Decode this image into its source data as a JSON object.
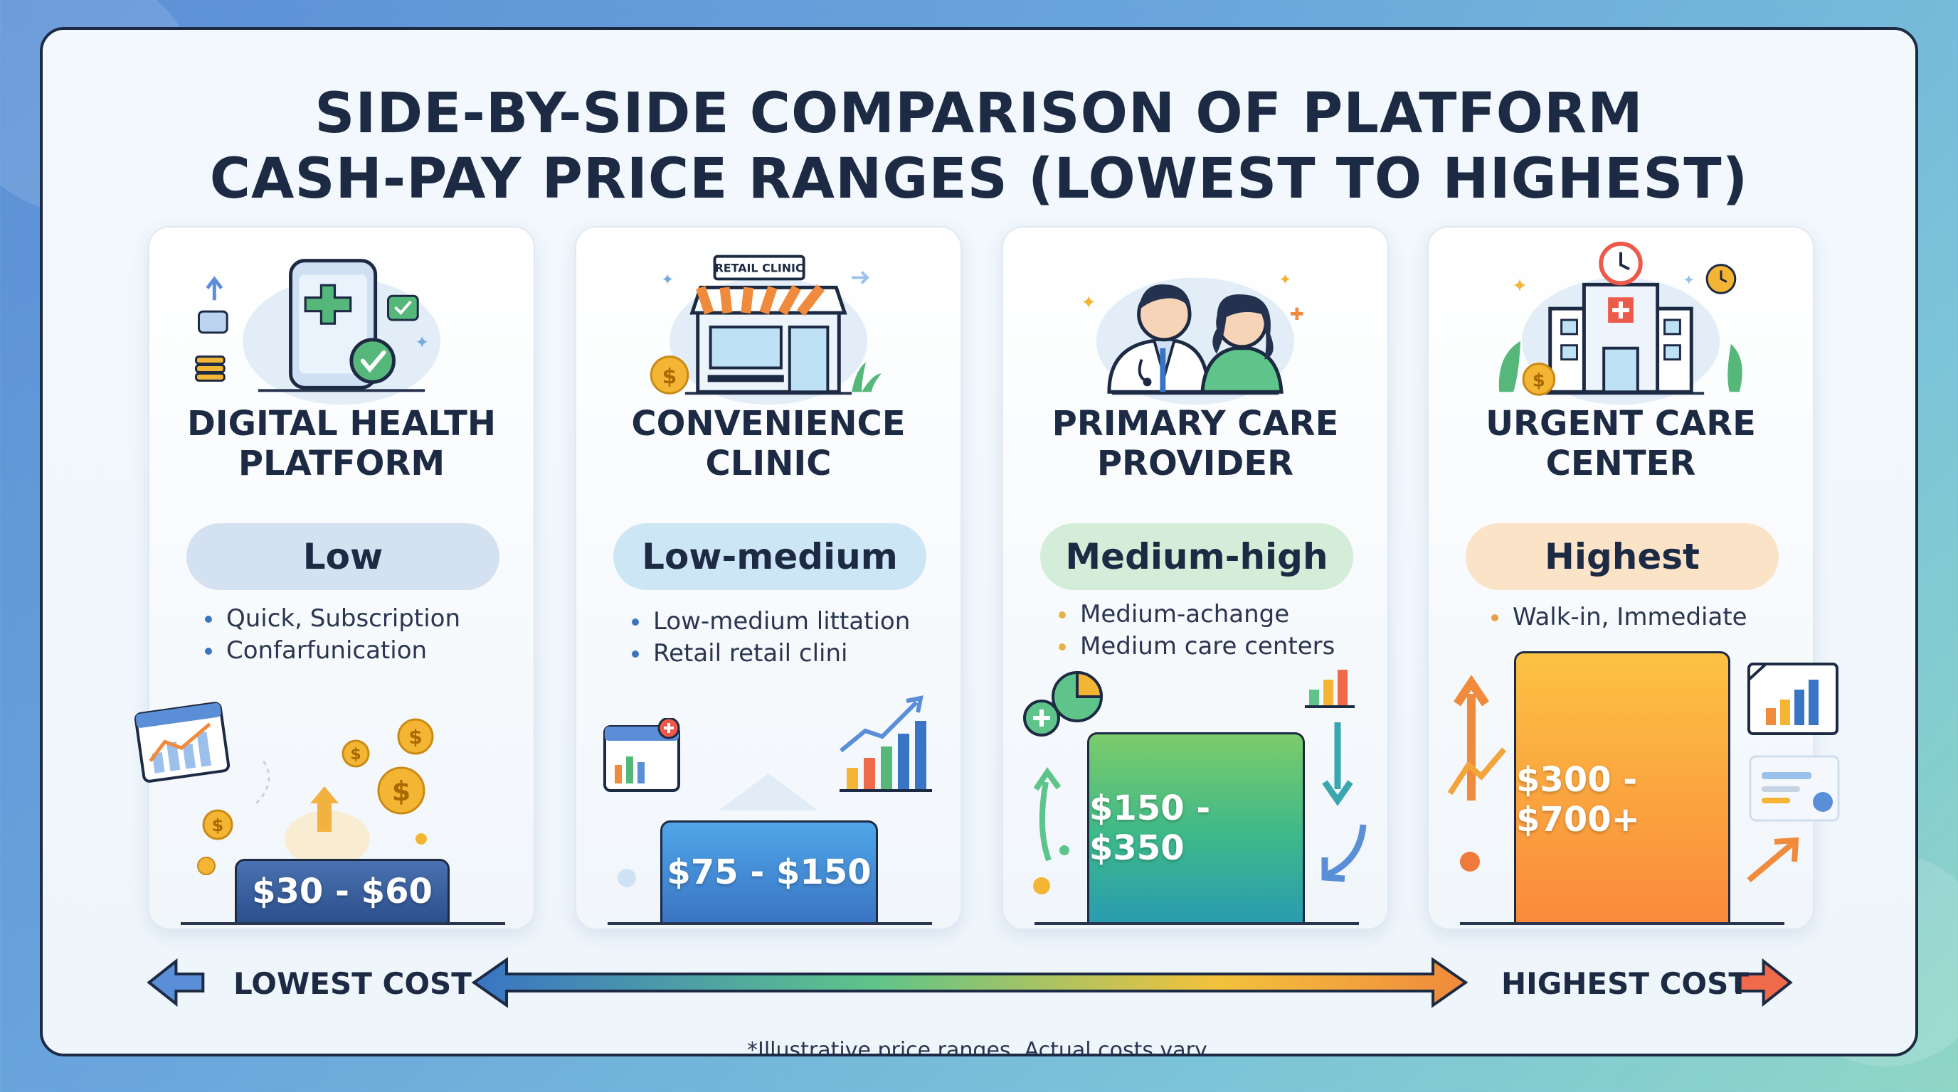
{
  "title_line1": "SIDE-BY-SIDE COMPARISON OF PLATFORM",
  "title_line2": "CASH-PAY PRICE RANGES (LOWEST TO HIGHEST)",
  "cards": [
    {
      "title_line1": "DIGITAL HEALTH",
      "title_line2": "PLATFORM",
      "level": "Low",
      "level_color": "#d4e1f1",
      "bullets": [
        "Quick, Subscription",
        "Confarfunication"
      ],
      "bullet_color": "#3a74c4",
      "price": "$30 - $60",
      "icon": "smartphone-medical-icon"
    },
    {
      "title_line1": "CONVENIENCE",
      "title_line2": "CLINIC",
      "level": "Low-medium",
      "level_color": "#cde6f5",
      "bullets": [
        "Low-medium littation",
        "Retail retail clini"
      ],
      "bullet_color": "#3a74c4",
      "price": "$75 - $150",
      "icon": "retail-clinic-store-icon",
      "sign": "RETAIL CLINIC"
    },
    {
      "title_line1": "PRIMARY CARE",
      "title_line2": "PROVIDER",
      "level": "Medium-high",
      "level_color": "#d3edd9",
      "bullets": [
        "Medium-achange",
        "Medium care centers"
      ],
      "bullet_color": "#e8b04a",
      "price": "$150 - $350",
      "icon": "doctor-patient-icon"
    },
    {
      "title_line1": "URGENT CARE",
      "title_line2": "CENTER",
      "level": "Highest",
      "level_color": "#fbe3c8",
      "bullets": [
        "Walk-in, Immediate"
      ],
      "bullet_color": "#e8a04a",
      "price": "$300 - $700+",
      "icon": "hospital-building-icon"
    }
  ],
  "lowest_label": "LOWEST COST",
  "highest_label": "HIGHEST COST",
  "footnote": "*Illustrative price ranges. Actual costs vary."
}
